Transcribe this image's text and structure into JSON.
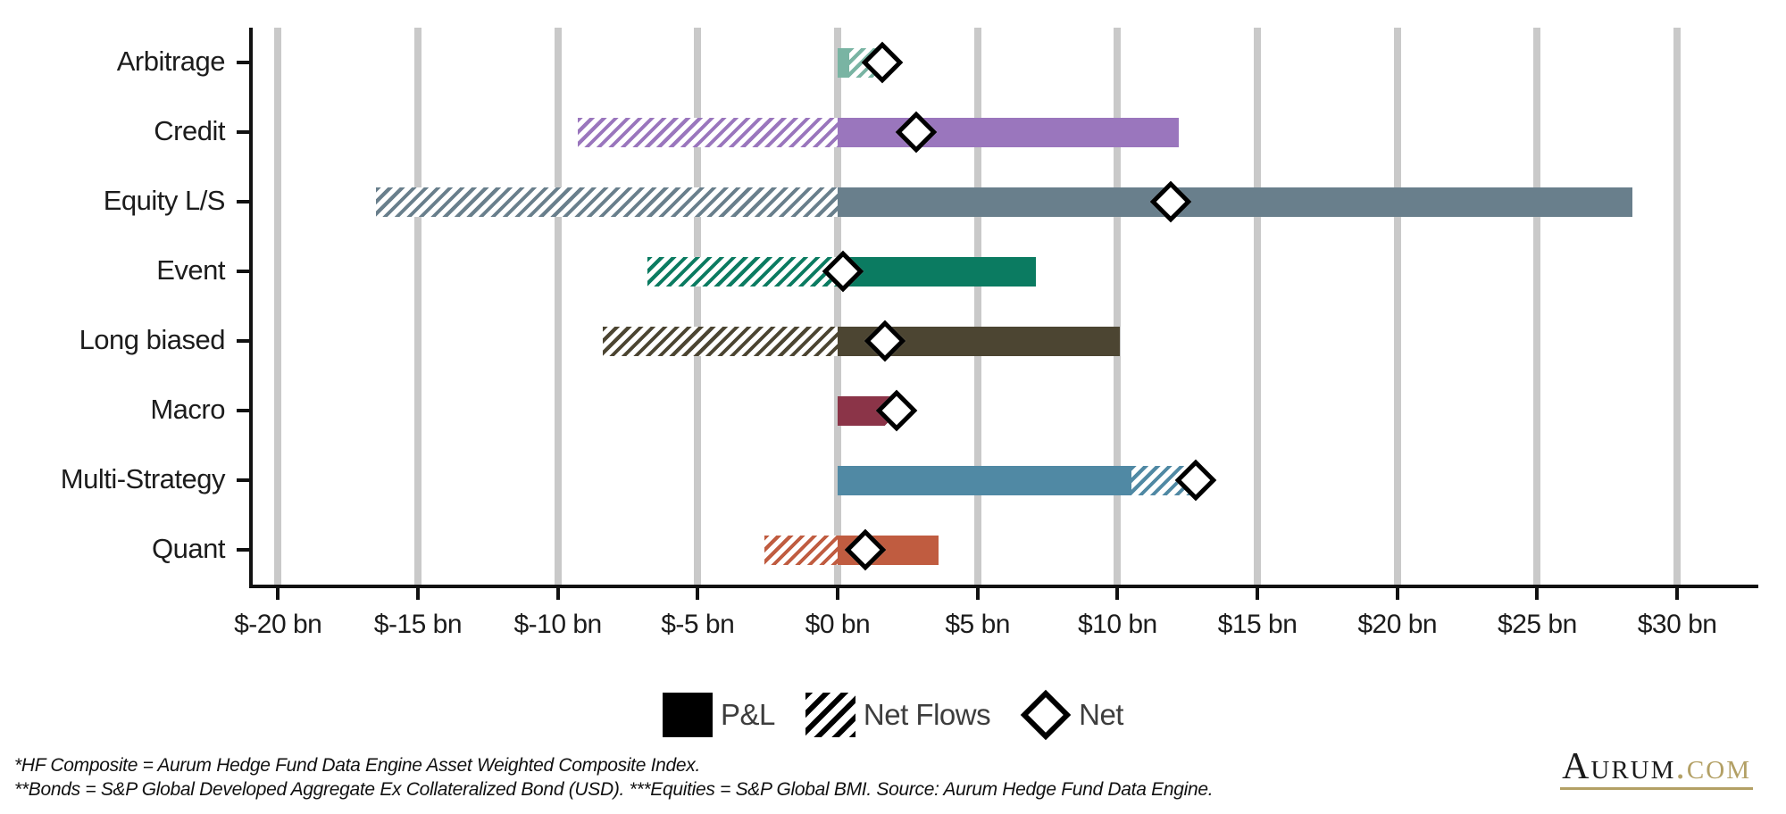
{
  "chart_data": {
    "type": "bar",
    "orientation": "horizontal",
    "title": "",
    "xlabel": "",
    "ylabel": "",
    "unit": "$ bn",
    "grid": true,
    "gridline_color": "#c9c9c9",
    "axis_domain": {
      "min": -20.9,
      "max": 32.9
    },
    "x_ticks": {
      "values": [
        -20,
        -15,
        -10,
        -5,
        0,
        5,
        10,
        15,
        20,
        25,
        30
      ],
      "labels": [
        "$-20 bn",
        "$-15 bn",
        "$-10 bn",
        "$-5 bn",
        "$0 bn",
        "$5 bn",
        "$10 bn",
        "$15 bn",
        "$20 bn",
        "$25 bn",
        "$30 bn"
      ]
    },
    "categories": [
      "Arbitrage",
      "Credit",
      "Equity L/S",
      "Event",
      "Long biased",
      "Macro",
      "Multi-Strategy",
      "Quant"
    ],
    "category_colors": [
      "#79b4a3",
      "#9a76bd",
      "#697f8c",
      "#0b7b61",
      "#4c4532",
      "#8b3448",
      "#5089a4",
      "#c05c40"
    ],
    "series": [
      {
        "name": "P&L",
        "style": "solid-bar",
        "values": [
          0.4,
          12.2,
          28.4,
          7.1,
          10.1,
          1.7,
          10.5,
          3.6
        ]
      },
      {
        "name": "Net Flows",
        "style": "hatched-bar",
        "values": [
          1.2,
          -9.3,
          -16.5,
          -6.8,
          -8.4,
          0.4,
          2.3,
          -2.6
        ]
      },
      {
        "name": "Net",
        "style": "diamond-marker",
        "values": [
          1.6,
          2.8,
          11.9,
          0.2,
          1.7,
          2.1,
          12.8,
          1.0
        ]
      }
    ],
    "legend_position": "bottom-center"
  },
  "legend": {
    "pnl": "P&L",
    "net_flows": "Net Flows",
    "net": "Net"
  },
  "footnotes": {
    "line1": "*HF Composite = Aurum Hedge Fund Data Engine Asset Weighted Composite Index.",
    "line2": "**Bonds = S&P Global Developed Aggregate Ex Collateralized Bond (USD). ***Equities = S&P Global BMI. Source: Aurum Hedge Fund Data Engine."
  },
  "logo": {
    "brand": "Aurum",
    "tld": ".com",
    "gold_color": "#b3a065"
  }
}
